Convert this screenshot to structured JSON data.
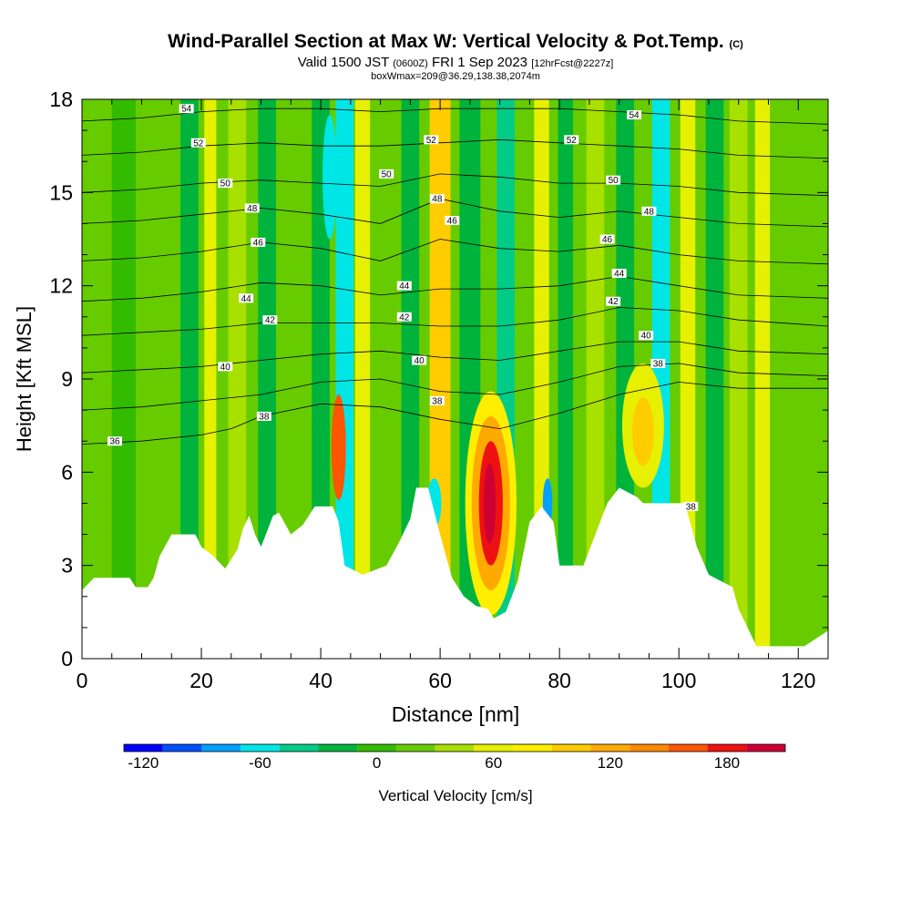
{
  "title": {
    "main": "Wind-Parallel Section at Max W: Vertical Velocity & Pot.Temp.",
    "copyright": "(C)",
    "valid_prefix": "Valid 1500 JST",
    "valid_utc": "(0600Z)",
    "valid_date": "FRI 1 Sep 2023",
    "forecast": "[12hrFcst@2227z]",
    "box": "boxWmax=209@36.29,138.38,2074m"
  },
  "chart_data": {
    "type": "heatmap",
    "xlabel": "Distance [nm]",
    "ylabel": "Height [Kft MSL]",
    "xlim": [
      0,
      125
    ],
    "ylim": [
      0,
      18
    ],
    "x_ticks": [
      0,
      20,
      40,
      60,
      80,
      100,
      120
    ],
    "y_ticks": [
      0,
      3,
      6,
      9,
      12,
      15,
      18
    ],
    "background_w": 10,
    "terrain_kft": [
      [
        0,
        2.2
      ],
      [
        2,
        2.6
      ],
      [
        8,
        2.6
      ],
      [
        9,
        2.3
      ],
      [
        11,
        2.3
      ],
      [
        12,
        2.6
      ],
      [
        13,
        3.3
      ],
      [
        15,
        4.0
      ],
      [
        19,
        4.0
      ],
      [
        20,
        3.6
      ],
      [
        22,
        3.3
      ],
      [
        24,
        2.9
      ],
      [
        26,
        3.5
      ],
      [
        27,
        4.2
      ],
      [
        28,
        4.6
      ],
      [
        29,
        4.0
      ],
      [
        30,
        3.6
      ],
      [
        32,
        4.6
      ],
      [
        33,
        4.7
      ],
      [
        35,
        4.0
      ],
      [
        37,
        4.3
      ],
      [
        39,
        4.9
      ],
      [
        42,
        4.9
      ],
      [
        43,
        4.4
      ],
      [
        44,
        3.0
      ],
      [
        47,
        2.7
      ],
      [
        51,
        3.0
      ],
      [
        53,
        3.7
      ],
      [
        55,
        4.5
      ],
      [
        56,
        5.5
      ],
      [
        58,
        5.5
      ],
      [
        60,
        4.0
      ],
      [
        62,
        2.6
      ],
      [
        64,
        2.0
      ],
      [
        66,
        1.7
      ],
      [
        68,
        1.6
      ],
      [
        69,
        1.3
      ],
      [
        71,
        1.5
      ],
      [
        73,
        2.5
      ],
      [
        75,
        4.4
      ],
      [
        77,
        4.9
      ],
      [
        79,
        4.4
      ],
      [
        80,
        3.0
      ],
      [
        84,
        3.0
      ],
      [
        86,
        4.0
      ],
      [
        88,
        5.0
      ],
      [
        90,
        5.5
      ],
      [
        93,
        5.2
      ],
      [
        94,
        5.0
      ],
      [
        101,
        5.0
      ],
      [
        103,
        3.6
      ],
      [
        105,
        2.7
      ],
      [
        109,
        2.3
      ],
      [
        110,
        1.6
      ],
      [
        113,
        0.4
      ],
      [
        121,
        0.4
      ],
      [
        125,
        0.9
      ]
    ],
    "w_bands": [
      {
        "x": 2,
        "w": 3,
        "val": 20
      },
      {
        "x": 7,
        "w": 4,
        "val": -10
      },
      {
        "x": 13,
        "w": 3,
        "val": 25
      },
      {
        "x": 18,
        "w": 3,
        "val": -20
      },
      {
        "x": 21.5,
        "w": 2,
        "val": 55
      },
      {
        "x": 26,
        "w": 3,
        "val": 40
      },
      {
        "x": 31,
        "w": 3,
        "val": -20
      },
      {
        "x": 35,
        "w": 3,
        "val": 25
      },
      {
        "x": 40,
        "w": 3,
        "val": -30
      },
      {
        "x": 44,
        "w": 3,
        "val": -65
      },
      {
        "x": 47,
        "w": 2.5,
        "val": 55
      },
      {
        "x": 51,
        "w": 3,
        "val": 20
      },
      {
        "x": 55,
        "w": 3,
        "val": -25
      },
      {
        "x": 60,
        "w": 3.5,
        "val": 95
      },
      {
        "x": 65,
        "w": 3.5,
        "val": -30
      },
      {
        "x": 71,
        "w": 3,
        "val": -45
      },
      {
        "x": 77,
        "w": 2.5,
        "val": 55
      },
      {
        "x": 81,
        "w": 2.5,
        "val": -25
      },
      {
        "x": 86,
        "w": 3,
        "val": 35
      },
      {
        "x": 91,
        "w": 3,
        "val": -20
      },
      {
        "x": 97,
        "w": 3,
        "val": -55
      },
      {
        "x": 101.5,
        "w": 2.5,
        "val": 50
      },
      {
        "x": 106,
        "w": 3,
        "val": -25
      },
      {
        "x": 110,
        "w": 3,
        "val": 40
      },
      {
        "x": 114,
        "w": 2.5,
        "val": 55
      },
      {
        "x": 120,
        "w": 3,
        "val": 20
      }
    ],
    "w_cells": [
      {
        "x": 43,
        "y": 6.8,
        "rx": 1.2,
        "ry": 1.7,
        "val": 160
      },
      {
        "x": 68.5,
        "y": 5.0,
        "rx": 4.3,
        "ry": 3.6,
        "val": 70
      },
      {
        "x": 68.5,
        "y": 5.0,
        "rx": 3.2,
        "ry": 2.8,
        "val": 120
      },
      {
        "x": 68.5,
        "y": 5.0,
        "rx": 2.0,
        "ry": 2.0,
        "val": 170
      },
      {
        "x": 68.3,
        "y": 5.0,
        "rx": 1.0,
        "ry": 1.3,
        "val": 209
      },
      {
        "x": 94,
        "y": 7.5,
        "rx": 3.5,
        "ry": 2.0,
        "val": 65
      },
      {
        "x": 94,
        "y": 7.3,
        "rx": 1.8,
        "ry": 1.1,
        "val": 95
      },
      {
        "x": 59,
        "y": 5.0,
        "rx": 1.2,
        "ry": 0.8,
        "val": -55
      },
      {
        "x": 78,
        "y": 5.0,
        "rx": 0.8,
        "ry": 0.8,
        "val": -85
      },
      {
        "x": 41.5,
        "y": 15.5,
        "rx": 1.2,
        "ry": 2.0,
        "val": -55
      }
    ],
    "theta_contours": [
      {
        "val": 36,
        "x": [
          0,
          10,
          20,
          25,
          30,
          40,
          50,
          60,
          70,
          80,
          90,
          100,
          110,
          125
        ],
        "y": [
          6.9,
          7.0,
          7.2,
          7.4,
          7.8,
          8.2,
          8.1,
          7.7,
          7.4,
          7.9,
          8.5,
          8.9,
          8.7,
          8.7
        ]
      },
      {
        "val": 38,
        "x": [
          0,
          10,
          20,
          30,
          40,
          50,
          60,
          70,
          80,
          90,
          100,
          110,
          125
        ],
        "y": [
          8.0,
          8.1,
          8.3,
          8.5,
          8.9,
          9.0,
          8.6,
          8.5,
          8.9,
          9.4,
          9.5,
          9.2,
          9.1
        ]
      },
      {
        "val": 40,
        "x": [
          0,
          10,
          20,
          30,
          40,
          50,
          60,
          70,
          80,
          90,
          100,
          110,
          125
        ],
        "y": [
          9.2,
          9.3,
          9.4,
          9.6,
          9.8,
          9.9,
          9.7,
          9.6,
          9.9,
          10.2,
          10.2,
          9.9,
          9.8
        ]
      },
      {
        "val": 42,
        "x": [
          0,
          10,
          20,
          30,
          40,
          50,
          60,
          70,
          80,
          90,
          100,
          110,
          125
        ],
        "y": [
          10.4,
          10.5,
          10.6,
          10.8,
          10.8,
          10.8,
          10.7,
          10.7,
          10.9,
          11.3,
          11.2,
          10.9,
          10.7
        ]
      },
      {
        "val": 44,
        "x": [
          0,
          10,
          20,
          30,
          40,
          50,
          60,
          70,
          80,
          90,
          100,
          110,
          125
        ],
        "y": [
          11.5,
          11.6,
          11.8,
          12.1,
          12.0,
          11.7,
          11.9,
          11.9,
          12.0,
          12.3,
          12.0,
          11.7,
          11.6
        ]
      },
      {
        "val": 46,
        "x": [
          0,
          10,
          20,
          30,
          40,
          50,
          60,
          70,
          80,
          90,
          100,
          110,
          125
        ],
        "y": [
          12.8,
          12.9,
          13.1,
          13.4,
          13.2,
          12.8,
          13.5,
          13.2,
          13.1,
          13.3,
          13.0,
          12.8,
          12.7
        ]
      },
      {
        "val": 48,
        "x": [
          0,
          10,
          20,
          30,
          40,
          50,
          60,
          70,
          80,
          90,
          100,
          110,
          125
        ],
        "y": [
          14.0,
          14.1,
          14.3,
          14.5,
          14.3,
          14.0,
          14.8,
          14.4,
          14.2,
          14.4,
          14.2,
          14.0,
          13.9
        ]
      },
      {
        "val": 50,
        "x": [
          0,
          10,
          20,
          30,
          40,
          50,
          60,
          70,
          80,
          90,
          100,
          110,
          125
        ],
        "y": [
          15.0,
          15.1,
          15.3,
          15.4,
          15.3,
          15.2,
          15.6,
          15.5,
          15.3,
          15.3,
          15.2,
          15.0,
          14.9
        ]
      },
      {
        "val": 52,
        "x": [
          0,
          10,
          20,
          30,
          40,
          50,
          60,
          70,
          80,
          90,
          100,
          110,
          125
        ],
        "y": [
          16.2,
          16.3,
          16.5,
          16.6,
          16.5,
          16.5,
          16.6,
          16.7,
          16.6,
          16.5,
          16.4,
          16.2,
          16.1
        ]
      },
      {
        "val": 54,
        "x": [
          0,
          10,
          20,
          30,
          40,
          50,
          60,
          70,
          80,
          90,
          100,
          110,
          125
        ],
        "y": [
          17.3,
          17.4,
          17.6,
          17.7,
          17.7,
          17.6,
          17.7,
          17.7,
          17.7,
          17.6,
          17.5,
          17.3,
          17.2
        ]
      }
    ],
    "contour_labels": [
      {
        "text": "54",
        "x": 17.5,
        "y": 17.7
      },
      {
        "text": "52",
        "x": 19.5,
        "y": 16.6
      },
      {
        "text": "50",
        "x": 24,
        "y": 15.3
      },
      {
        "text": "48",
        "x": 28.5,
        "y": 14.5
      },
      {
        "text": "46",
        "x": 29.5,
        "y": 13.4
      },
      {
        "text": "44",
        "x": 27.5,
        "y": 11.6
      },
      {
        "text": "42",
        "x": 31.5,
        "y": 10.9
      },
      {
        "text": "40",
        "x": 24,
        "y": 9.4
      },
      {
        "text": "38",
        "x": 30.5,
        "y": 7.8
      },
      {
        "text": "36",
        "x": 5.5,
        "y": 7.0
      },
      {
        "text": "52",
        "x": 58.5,
        "y": 16.7
      },
      {
        "text": "50",
        "x": 51,
        "y": 15.6
      },
      {
        "text": "48",
        "x": 59.5,
        "y": 14.8
      },
      {
        "text": "46",
        "x": 62,
        "y": 14.1
      },
      {
        "text": "44",
        "x": 54,
        "y": 12.0
      },
      {
        "text": "42",
        "x": 54,
        "y": 11.0
      },
      {
        "text": "40",
        "x": 56.5,
        "y": 9.6
      },
      {
        "text": "38",
        "x": 59.5,
        "y": 8.3
      },
      {
        "text": "52",
        "x": 82,
        "y": 16.7
      },
      {
        "text": "54",
        "x": 92.5,
        "y": 17.5
      },
      {
        "text": "50",
        "x": 89,
        "y": 15.4
      },
      {
        "text": "48",
        "x": 95,
        "y": 14.4
      },
      {
        "text": "46",
        "x": 88,
        "y": 13.5
      },
      {
        "text": "44",
        "x": 90,
        "y": 12.4
      },
      {
        "text": "42",
        "x": 89,
        "y": 11.5
      },
      {
        "text": "40",
        "x": 94.5,
        "y": 10.4
      },
      {
        "text": "38",
        "x": 96.5,
        "y": 9.5
      },
      {
        "text": "38",
        "x": 102,
        "y": 4.9
      }
    ],
    "colorbar": {
      "label": "Vertical Velocity [cm/s]",
      "bounds": [
        -130,
        210
      ],
      "step": 20,
      "tick_labels": [
        "-120",
        "-60",
        "0",
        "60",
        "120",
        "180"
      ],
      "tick_values": [
        -120,
        -60,
        0,
        60,
        120,
        180
      ],
      "colors": [
        "#0000ff",
        "#0050ff",
        "#00a0ff",
        "#00e6e6",
        "#00cc88",
        "#00b33c",
        "#33bb00",
        "#66cc00",
        "#a8e000",
        "#e6f000",
        "#ffee00",
        "#ffcc00",
        "#ffaa00",
        "#ff8800",
        "#ff5500",
        "#ee1111",
        "#cc0033",
        "#990066",
        "#4b0082"
      ]
    }
  }
}
